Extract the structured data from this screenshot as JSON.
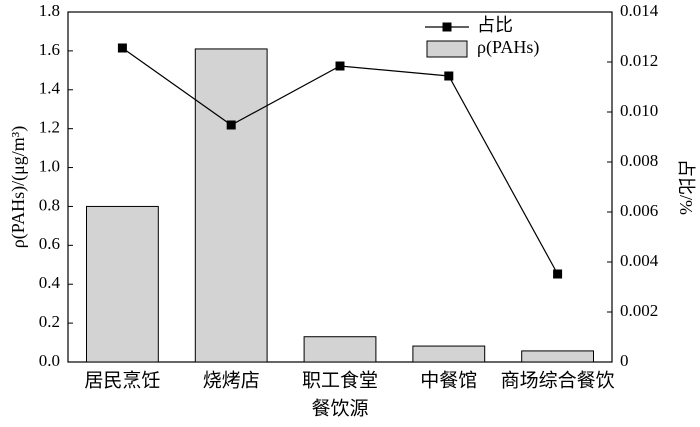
{
  "chart_data": {
    "type": "bar",
    "categories": [
      "居民烹饪",
      "烧烤店",
      "职工食堂",
      "中餐馆",
      "商场综合餐饮"
    ],
    "series": [
      {
        "name": "ρ(PAHs)",
        "type": "bar",
        "color": "#d3d3d3",
        "values": [
          0.8,
          1.61,
          0.13,
          0.082,
          0.057
        ]
      },
      {
        "name": "占比",
        "type": "line",
        "axis": "y2",
        "color": "#000000",
        "values": [
          0.01256,
          0.00948,
          0.01184,
          0.01144,
          0.00352
        ]
      }
    ],
    "xlabel": "餐饮源",
    "ylabel": "ρ(PAHs)/(μg/m³)",
    "y2label": "占比/%",
    "ylim": [
      0,
      1.8
    ],
    "yticks": [
      {
        "value": 0,
        "label": "0.0"
      },
      0.2,
      0.4,
      0.6,
      0.8,
      {
        "value": 1,
        "label": "1.0"
      },
      1.2,
      1.4,
      1.6,
      1.8
    ],
    "y2lim": [
      0,
      0.014
    ],
    "y2ticks": [
      0,
      0.002,
      0.004,
      0.006,
      0.008,
      {
        "value": 0.01,
        "label": "0.010"
      },
      0.012,
      0.014
    ],
    "legend": "upper-right"
  }
}
